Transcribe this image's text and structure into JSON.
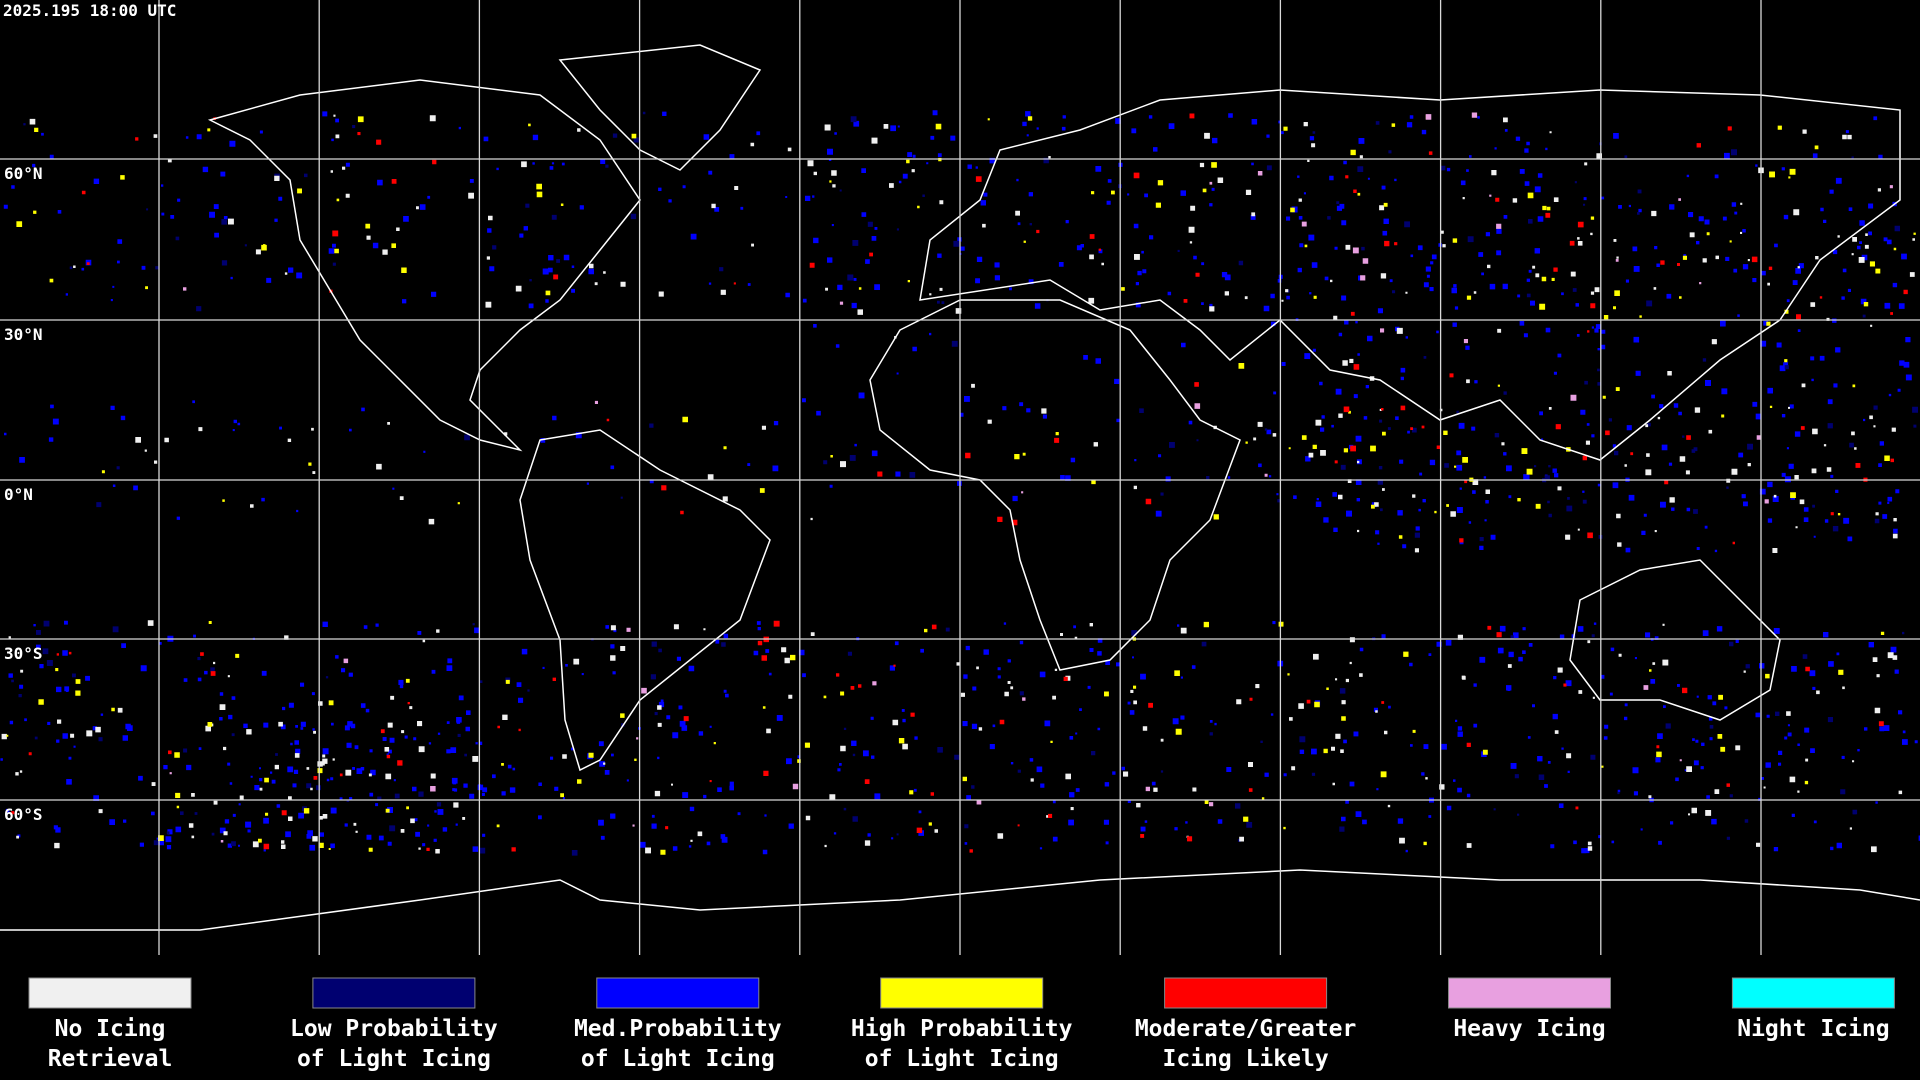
{
  "timestamp": "2025.195 18:00 UTC",
  "latitude_labels": [
    "60°N",
    "30°N",
    "0°N",
    "30°S",
    "60°S"
  ],
  "legend": [
    {
      "lines": [
        "No Icing",
        "Retrieval"
      ],
      "color": "#f0f0f0"
    },
    {
      "lines": [
        "Low Probability",
        "of Light Icing"
      ],
      "color": "#000070"
    },
    {
      "lines": [
        "Med.Probability",
        "of Light Icing"
      ],
      "color": "#0000ff"
    },
    {
      "lines": [
        "High Probability",
        "of Light Icing"
      ],
      "color": "#ffff00"
    },
    {
      "lines": [
        "Moderate/Greater",
        "Icing Likely"
      ],
      "color": "#ff0000"
    },
    {
      "lines": [
        "Heavy Icing"
      ],
      "color": "#e8a0e0"
    },
    {
      "lines": [
        "Night Icing"
      ],
      "color": "#00ffff"
    }
  ]
}
